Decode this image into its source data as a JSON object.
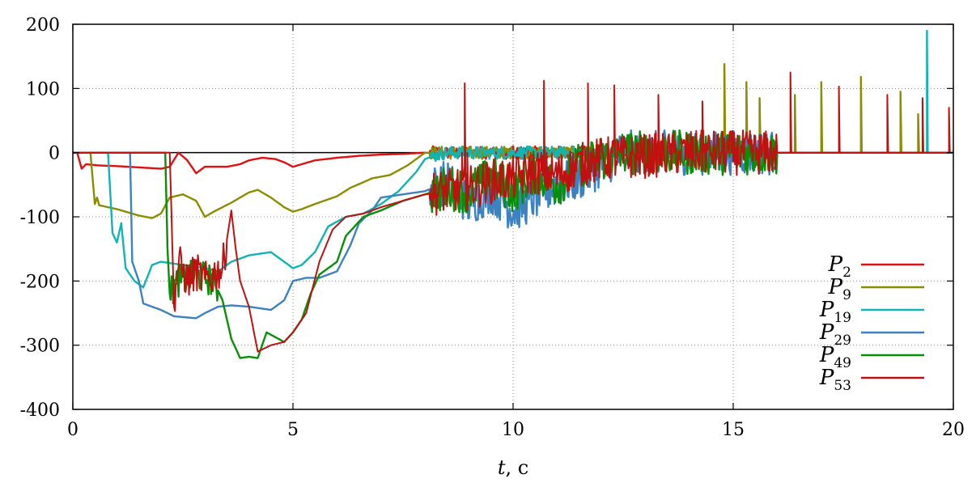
{
  "chart_data": {
    "type": "line",
    "title": "",
    "xlabel": "t, c",
    "ylabel": "",
    "xlim": [
      0,
      20
    ],
    "ylim": [
      -400,
      200
    ],
    "xticks": [
      0,
      5,
      10,
      15,
      20
    ],
    "yticks": [
      200,
      100,
      0,
      -100,
      -200,
      -300,
      -400
    ],
    "grid": true,
    "legend_position": "bottom-right",
    "series": [
      {
        "name": "P2",
        "label_main": "P",
        "label_sub": "2",
        "color": "#e01010",
        "points": [
          [
            0,
            0
          ],
          [
            0.1,
            0
          ],
          [
            0.2,
            -25
          ],
          [
            0.3,
            -18
          ],
          [
            0.6,
            -20
          ],
          [
            1.0,
            -21
          ],
          [
            1.5,
            -23
          ],
          [
            2.0,
            -25
          ],
          [
            2.2,
            -22
          ],
          [
            2.4,
            0
          ],
          [
            2.6,
            -12
          ],
          [
            2.7,
            -22
          ],
          [
            2.8,
            -32
          ],
          [
            3.0,
            -22
          ],
          [
            3.5,
            -22
          ],
          [
            3.8,
            -18
          ],
          [
            4.0,
            -12
          ],
          [
            4.3,
            -8
          ],
          [
            4.6,
            -10
          ],
          [
            4.8,
            -15
          ],
          [
            5.0,
            -22
          ],
          [
            5.2,
            -18
          ],
          [
            5.5,
            -12
          ],
          [
            6.0,
            -8
          ],
          [
            6.5,
            -5
          ],
          [
            7.0,
            -3
          ],
          [
            7.5,
            -2
          ],
          [
            8.0,
            0
          ],
          [
            20,
            0
          ]
        ]
      },
      {
        "name": "P9",
        "label_main": "P",
        "label_sub": "9",
        "color": "#8c8c00",
        "points": [
          [
            0,
            0
          ],
          [
            0.4,
            0
          ],
          [
            0.5,
            -80
          ],
          [
            0.55,
            -70
          ],
          [
            0.6,
            -82
          ],
          [
            1.0,
            -88
          ],
          [
            1.5,
            -98
          ],
          [
            1.8,
            -102
          ],
          [
            2.0,
            -95
          ],
          [
            2.2,
            -70
          ],
          [
            2.5,
            -65
          ],
          [
            2.8,
            -75
          ],
          [
            3.0,
            -100
          ],
          [
            3.2,
            -92
          ],
          [
            3.6,
            -78
          ],
          [
            4.0,
            -62
          ],
          [
            4.2,
            -58
          ],
          [
            4.5,
            -70
          ],
          [
            4.8,
            -85
          ],
          [
            5.0,
            -92
          ],
          [
            5.2,
            -88
          ],
          [
            5.5,
            -80
          ],
          [
            6.0,
            -68
          ],
          [
            6.3,
            -55
          ],
          [
            6.8,
            -40
          ],
          [
            7.2,
            -35
          ],
          [
            7.6,
            -20
          ],
          [
            8.0,
            0
          ],
          [
            20,
            0
          ]
        ],
        "spikes": [
          [
            14.8,
            138
          ],
          [
            15.3,
            110
          ],
          [
            15.6,
            85
          ],
          [
            16.4,
            90
          ],
          [
            17.0,
            110
          ],
          [
            17.9,
            118
          ],
          [
            18.8,
            95
          ],
          [
            19.2,
            60
          ]
        ]
      },
      {
        "name": "P19",
        "label_main": "P",
        "label_sub": "19",
        "color": "#10b4b4",
        "points": [
          [
            0,
            0
          ],
          [
            0.8,
            0
          ],
          [
            0.9,
            -125
          ],
          [
            1.0,
            -140
          ],
          [
            1.1,
            -110
          ],
          [
            1.2,
            -180
          ],
          [
            1.4,
            -200
          ],
          [
            1.6,
            -210
          ],
          [
            1.8,
            -175
          ],
          [
            2.0,
            -170
          ],
          [
            2.5,
            -175
          ],
          [
            3.0,
            -180
          ],
          [
            3.3,
            -185
          ],
          [
            3.6,
            -170
          ],
          [
            4.0,
            -160
          ],
          [
            4.5,
            -155
          ],
          [
            4.8,
            -170
          ],
          [
            5.0,
            -180
          ],
          [
            5.2,
            -175
          ],
          [
            5.5,
            -155
          ],
          [
            5.8,
            -115
          ],
          [
            6.2,
            -100
          ],
          [
            6.6,
            -95
          ],
          [
            7.0,
            -80
          ],
          [
            7.4,
            -60
          ],
          [
            7.8,
            -30
          ],
          [
            8.0,
            -10
          ],
          [
            8.2,
            -5
          ],
          [
            8.5,
            0
          ],
          [
            20,
            0
          ]
        ],
        "spikes": [
          [
            19.4,
            190
          ]
        ]
      },
      {
        "name": "P29",
        "label_main": "P",
        "label_sub": "29",
        "color": "#3c82c0",
        "points": [
          [
            0,
            0
          ],
          [
            1.3,
            0
          ],
          [
            1.35,
            -170
          ],
          [
            1.5,
            -200
          ],
          [
            1.6,
            -235
          ],
          [
            2.0,
            -245
          ],
          [
            2.3,
            -255
          ],
          [
            2.8,
            -258
          ],
          [
            3.0,
            -250
          ],
          [
            3.3,
            -240
          ],
          [
            3.6,
            -238
          ],
          [
            4.0,
            -240
          ],
          [
            4.5,
            -245
          ],
          [
            4.8,
            -230
          ],
          [
            5.0,
            -200
          ],
          [
            5.3,
            -195
          ],
          [
            5.6,
            -195
          ],
          [
            6.0,
            -185
          ],
          [
            6.3,
            -145
          ],
          [
            6.5,
            -110
          ],
          [
            6.8,
            -90
          ],
          [
            7.0,
            -70
          ],
          [
            7.5,
            -65
          ],
          [
            8.0,
            -60
          ],
          [
            8.5,
            -45
          ],
          [
            9.0,
            -80
          ],
          [
            9.5,
            -60
          ],
          [
            10.0,
            -90
          ],
          [
            10.5,
            -70
          ],
          [
            11.0,
            -50
          ],
          [
            11.5,
            -40
          ],
          [
            12.0,
            -20
          ],
          [
            12.5,
            0
          ],
          [
            20,
            0
          ]
        ]
      },
      {
        "name": "P49",
        "label_main": "P",
        "label_sub": "49",
        "color": "#078f07",
        "points": [
          [
            0,
            0
          ],
          [
            2.1,
            0
          ],
          [
            2.15,
            -150
          ],
          [
            2.2,
            -220
          ],
          [
            2.4,
            -200
          ],
          [
            2.8,
            -190
          ],
          [
            3.2,
            -200
          ],
          [
            3.4,
            -230
          ],
          [
            3.6,
            -290
          ],
          [
            3.8,
            -320
          ],
          [
            4.0,
            -318
          ],
          [
            4.2,
            -320
          ],
          [
            4.4,
            -280
          ],
          [
            4.8,
            -295
          ],
          [
            5.0,
            -280
          ],
          [
            5.2,
            -260
          ],
          [
            5.4,
            -220
          ],
          [
            5.6,
            -190
          ],
          [
            6.0,
            -170
          ],
          [
            6.2,
            -130
          ],
          [
            6.6,
            -100
          ],
          [
            7.0,
            -90
          ],
          [
            7.5,
            -75
          ],
          [
            8.0,
            -65
          ],
          [
            8.5,
            -55
          ],
          [
            9.0,
            -60
          ],
          [
            9.5,
            -40
          ],
          [
            10.0,
            -60
          ],
          [
            10.5,
            -30
          ],
          [
            11.0,
            -50
          ],
          [
            11.5,
            -20
          ],
          [
            12.0,
            -10
          ],
          [
            12.5,
            0
          ],
          [
            20,
            0
          ]
        ]
      },
      {
        "name": "P53",
        "label_main": "P",
        "label_sub": "53",
        "color": "#c01010",
        "points": [
          [
            0,
            0
          ],
          [
            2.2,
            0
          ],
          [
            2.3,
            -240
          ],
          [
            2.4,
            -170
          ],
          [
            2.6,
            -200
          ],
          [
            2.8,
            -185
          ],
          [
            3.0,
            -200
          ],
          [
            3.2,
            -190
          ],
          [
            3.4,
            -180
          ],
          [
            3.6,
            -90
          ],
          [
            3.7,
            -150
          ],
          [
            3.8,
            -200
          ],
          [
            4.0,
            -240
          ],
          [
            4.2,
            -310
          ],
          [
            4.5,
            -300
          ],
          [
            4.8,
            -295
          ],
          [
            5.0,
            -280
          ],
          [
            5.3,
            -250
          ],
          [
            5.6,
            -170
          ],
          [
            5.9,
            -120
          ],
          [
            6.2,
            -100
          ],
          [
            6.6,
            -95
          ],
          [
            7.0,
            -85
          ],
          [
            7.5,
            -75
          ],
          [
            8.0,
            -65
          ],
          [
            8.5,
            -60
          ],
          [
            9.0,
            -55
          ],
          [
            9.5,
            -45
          ],
          [
            10.0,
            -40
          ],
          [
            10.5,
            -30
          ],
          [
            11.0,
            -35
          ],
          [
            11.5,
            -20
          ],
          [
            12.0,
            -10
          ],
          [
            13.0,
            -5
          ],
          [
            14.0,
            0
          ],
          [
            20,
            0
          ]
        ],
        "spikes": [
          [
            8.9,
            108
          ],
          [
            10.7,
            112
          ],
          [
            11.7,
            108
          ],
          [
            12.3,
            105
          ],
          [
            13.3,
            90
          ],
          [
            14.3,
            80
          ],
          [
            16.3,
            125
          ],
          [
            17.4,
            103
          ],
          [
            18.5,
            90
          ],
          [
            19.3,
            85
          ],
          [
            19.9,
            70
          ]
        ]
      }
    ]
  }
}
